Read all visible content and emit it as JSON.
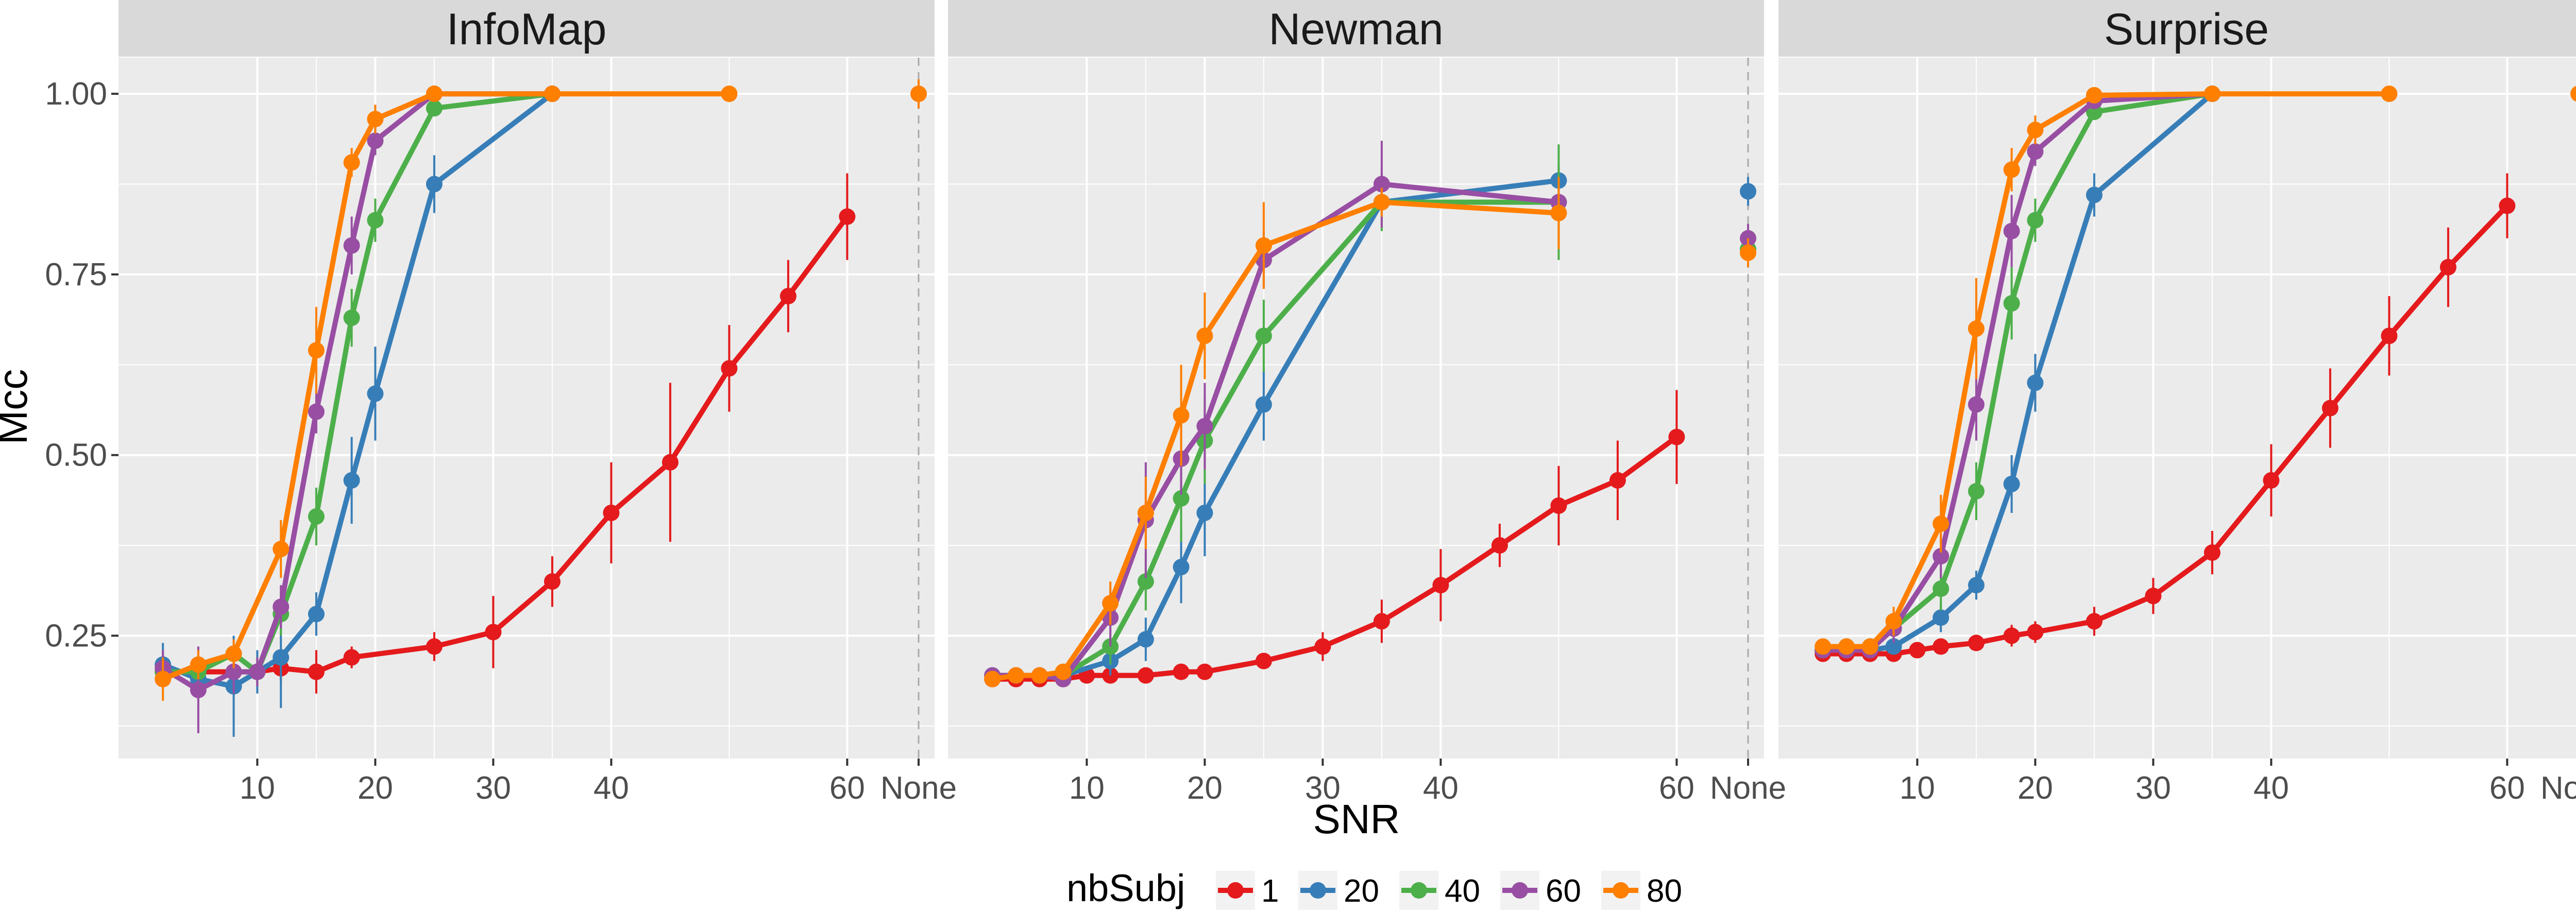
{
  "chart_data": {
    "type": "line",
    "facets": [
      "InfoMap",
      "Newman",
      "Surprise"
    ],
    "xlabel": "SNR",
    "ylabel": "Mcc",
    "x_ticks": [
      10,
      20,
      30,
      40,
      60,
      "None"
    ],
    "y_ticks": [
      0.25,
      0.5,
      0.75,
      1.0
    ],
    "y_tick_labels": [
      "0.25",
      "0.50",
      "0.75",
      "1.00"
    ],
    "xlim": [
      0,
      70
    ],
    "ylim": [
      0.08,
      1.05
    ],
    "grid": true,
    "legend": {
      "title": "nbSubj",
      "position": "bottom",
      "entries": [
        "1",
        "20",
        "40",
        "60",
        "80"
      ]
    },
    "colors": {
      "1": "#e41a1c",
      "20": "#377eb8",
      "40": "#4daf4a",
      "60": "#984ea3",
      "80": "#ff7f00",
      "panel": "#ebebeb",
      "strip": "#d9d9d9",
      "grid": "#ffffff"
    },
    "panels": [
      {
        "facet": "InfoMap",
        "series": [
          {
            "name": "1",
            "x": [
              2,
              5,
              8,
              10,
              12,
              15,
              18,
              25,
              30,
              35,
              40,
              45,
              50,
              55,
              60
            ],
            "y": [
              0.2,
              0.2,
              0.2,
              0.2,
              0.205,
              0.2,
              0.22,
              0.235,
              0.255,
              0.325,
              0.42,
              0.49,
              0.62,
              0.72,
              0.83
            ],
            "err": [
              0.02,
              0.02,
              0.02,
              0.02,
              0.02,
              0.03,
              0.015,
              0.02,
              0.05,
              0.035,
              0.07,
              0.11,
              0.06,
              0.05,
              0.06
            ],
            "none": null
          },
          {
            "name": "20",
            "x": [
              2,
              5,
              8,
              10,
              12,
              15,
              18,
              20,
              25,
              35
            ],
            "y": [
              0.21,
              0.19,
              0.18,
              0.2,
              0.22,
              0.28,
              0.465,
              0.585,
              0.875,
              1.0
            ],
            "err": [
              0.03,
              0.03,
              0.07,
              0.03,
              0.07,
              0.03,
              0.06,
              0.065,
              0.04,
              0.005
            ],
            "none": null
          },
          {
            "name": "40",
            "x": [
              2,
              5,
              8,
              10,
              12,
              15,
              18,
              20,
              25,
              35
            ],
            "y": [
              0.2,
              0.2,
              0.225,
              0.2,
              0.28,
              0.415,
              0.69,
              0.825,
              0.98,
              1.0
            ],
            "err": [
              0.02,
              0.02,
              0.02,
              0.02,
              0.03,
              0.04,
              0.04,
              0.03,
              0.01,
              0.005
            ],
            "none": null
          },
          {
            "name": "60",
            "x": [
              2,
              5,
              8,
              10,
              12,
              15,
              18,
              20,
              25,
              35
            ],
            "y": [
              0.205,
              0.175,
              0.2,
              0.2,
              0.29,
              0.56,
              0.79,
              0.935,
              1.0,
              1.0
            ],
            "err": [
              0.025,
              0.06,
              0.03,
              0.02,
              0.03,
              0.03,
              0.04,
              0.02,
              0.005,
              0.005
            ],
            "none": null
          },
          {
            "name": "80",
            "x": [
              2,
              5,
              8,
              12,
              15,
              18,
              20,
              25,
              35,
              50
            ],
            "y": [
              0.19,
              0.21,
              0.225,
              0.37,
              0.645,
              0.905,
              0.965,
              1.0,
              1.0,
              1.0
            ],
            "err": [
              0.03,
              0.02,
              0.02,
              0.04,
              0.06,
              0.02,
              0.02,
              0.005,
              0.005,
              0.005
            ],
            "none": 1.0
          }
        ]
      },
      {
        "facet": "Newman",
        "series": [
          {
            "name": "1",
            "x": [
              2,
              4,
              6,
              8,
              10,
              12,
              15,
              18,
              20,
              25,
              30,
              35,
              40,
              45,
              50,
              55,
              60
            ],
            "y": [
              0.19,
              0.19,
              0.19,
              0.19,
              0.195,
              0.195,
              0.195,
              0.2,
              0.2,
              0.215,
              0.235,
              0.27,
              0.32,
              0.375,
              0.43,
              0.465,
              0.525
            ],
            "err": [
              0.01,
              0.01,
              0.01,
              0.01,
              0.01,
              0.01,
              0.01,
              0.01,
              0.01,
              0.01,
              0.02,
              0.03,
              0.05,
              0.03,
              0.055,
              0.055,
              0.065
            ],
            "none": null
          },
          {
            "name": "20",
            "x": [
              2,
              4,
              6,
              8,
              12,
              15,
              18,
              20,
              25,
              35,
              50
            ],
            "y": [
              0.195,
              0.195,
              0.195,
              0.195,
              0.215,
              0.245,
              0.345,
              0.42,
              0.57,
              0.85,
              0.88
            ],
            "err": [
              0.01,
              0.01,
              0.01,
              0.01,
              0.02,
              0.03,
              0.05,
              0.06,
              0.05,
              0.02,
              0.02
            ],
            "none": 0.865
          },
          {
            "name": "40",
            "x": [
              2,
              4,
              6,
              8,
              12,
              15,
              18,
              20,
              25,
              35,
              50
            ],
            "y": [
              0.195,
              0.195,
              0.195,
              0.195,
              0.235,
              0.325,
              0.44,
              0.52,
              0.665,
              0.85,
              0.85
            ],
            "err": [
              0.01,
              0.01,
              0.01,
              0.01,
              0.025,
              0.04,
              0.06,
              0.06,
              0.05,
              0.04,
              0.08
            ],
            "none": 0.785
          },
          {
            "name": "60",
            "x": [
              2,
              4,
              6,
              8,
              12,
              15,
              18,
              20,
              25,
              35,
              50
            ],
            "y": [
              0.195,
              0.195,
              0.195,
              0.19,
              0.275,
              0.41,
              0.495,
              0.54,
              0.77,
              0.875,
              0.85
            ],
            "err": [
              0.01,
              0.01,
              0.01,
              0.01,
              0.04,
              0.08,
              0.05,
              0.06,
              0.04,
              0.06,
              0.02
            ],
            "none": 0.8
          },
          {
            "name": "80",
            "x": [
              2,
              4,
              6,
              8,
              12,
              15,
              18,
              20,
              25,
              35,
              50
            ],
            "y": [
              0.19,
              0.195,
              0.195,
              0.2,
              0.295,
              0.42,
              0.555,
              0.665,
              0.79,
              0.85,
              0.835
            ],
            "err": [
              0.01,
              0.01,
              0.01,
              0.01,
              0.03,
              0.05,
              0.07,
              0.06,
              0.06,
              0.02,
              0.05
            ],
            "none": 0.78
          }
        ]
      },
      {
        "facet": "Surprise",
        "series": [
          {
            "name": "1",
            "x": [
              2,
              4,
              6,
              8,
              10,
              12,
              15,
              18,
              20,
              25,
              30,
              35,
              40,
              45,
              50,
              55,
              60
            ],
            "y": [
              0.225,
              0.225,
              0.225,
              0.225,
              0.23,
              0.235,
              0.24,
              0.25,
              0.255,
              0.27,
              0.305,
              0.365,
              0.465,
              0.565,
              0.665,
              0.76,
              0.845
            ],
            "err": [
              0.01,
              0.01,
              0.01,
              0.01,
              0.01,
              0.01,
              0.01,
              0.015,
              0.015,
              0.02,
              0.025,
              0.03,
              0.05,
              0.055,
              0.055,
              0.055,
              0.045
            ],
            "none": null
          },
          {
            "name": "20",
            "x": [
              2,
              4,
              6,
              8,
              12,
              15,
              18,
              20,
              25,
              35
            ],
            "y": [
              0.23,
              0.23,
              0.23,
              0.235,
              0.275,
              0.32,
              0.46,
              0.6,
              0.86,
              1.0
            ],
            "err": [
              0.01,
              0.01,
              0.01,
              0.01,
              0.02,
              0.02,
              0.04,
              0.04,
              0.03,
              0.005
            ],
            "none": null
          },
          {
            "name": "40",
            "x": [
              2,
              4,
              6,
              8,
              12,
              15,
              18,
              20,
              25,
              35
            ],
            "y": [
              0.23,
              0.235,
              0.235,
              0.26,
              0.315,
              0.45,
              0.71,
              0.825,
              0.975,
              1.0
            ],
            "err": [
              0.01,
              0.01,
              0.01,
              0.02,
              0.03,
              0.04,
              0.05,
              0.03,
              0.01,
              0.005
            ],
            "none": null
          },
          {
            "name": "60",
            "x": [
              2,
              4,
              6,
              8,
              12,
              15,
              18,
              20,
              25,
              35
            ],
            "y": [
              0.23,
              0.23,
              0.23,
              0.26,
              0.36,
              0.57,
              0.81,
              0.92,
              0.99,
              1.0
            ],
            "err": [
              0.01,
              0.01,
              0.01,
              0.02,
              0.03,
              0.05,
              0.05,
              0.02,
              0.01,
              0.005
            ],
            "none": null
          },
          {
            "name": "80",
            "x": [
              2,
              4,
              6,
              8,
              12,
              15,
              18,
              20,
              25,
              35,
              50
            ],
            "y": [
              0.235,
              0.235,
              0.235,
              0.27,
              0.405,
              0.675,
              0.895,
              0.95,
              0.998,
              1.0,
              1.0
            ],
            "err": [
              0.01,
              0.01,
              0.01,
              0.02,
              0.04,
              0.07,
              0.03,
              0.02,
              0.005,
              0.005,
              0.005
            ],
            "none": 1.0
          }
        ]
      }
    ]
  }
}
